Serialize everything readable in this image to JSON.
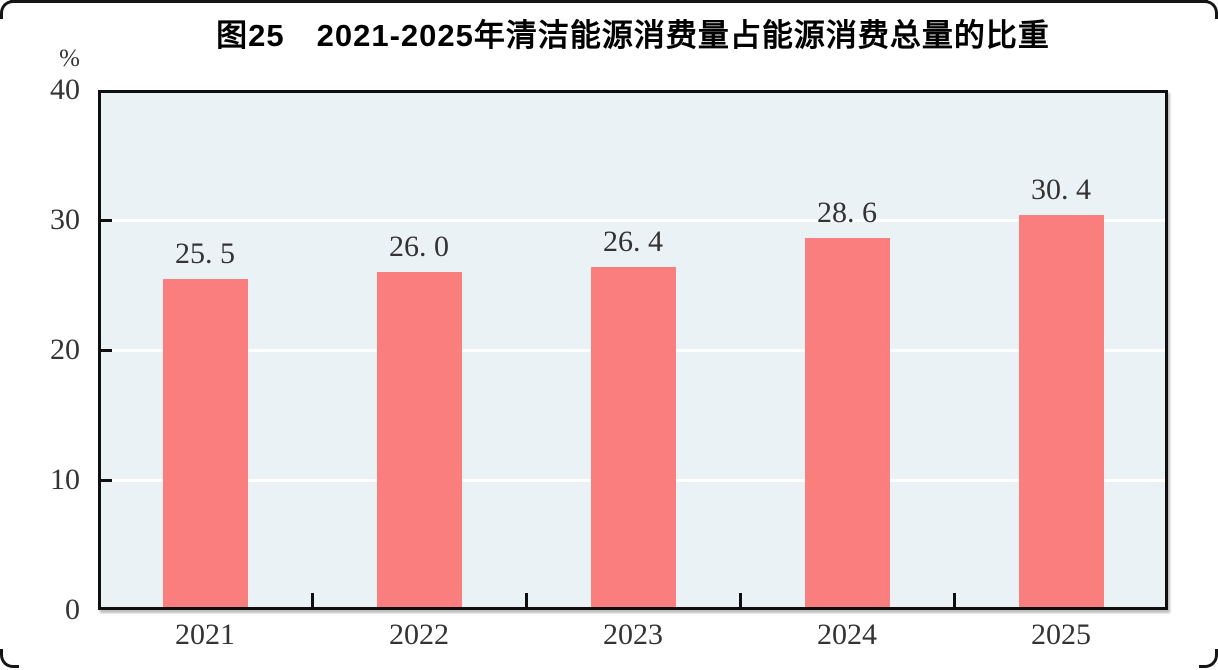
{
  "figure": {
    "title": "图25　2021-2025年清洁能源消费量占能源消费总量的比重",
    "unit_label": "%"
  },
  "chart_data": {
    "type": "bar",
    "title": "图25　2021-2025年清洁能源消费量占能源消费总量的比重",
    "categories": [
      "2021",
      "2022",
      "2023",
      "2024",
      "2025"
    ],
    "values": [
      25.5,
      26.0,
      26.4,
      28.6,
      30.4
    ],
    "value_labels": [
      "25. 5",
      "26. 0",
      "26. 4",
      "28. 6",
      "30. 4"
    ],
    "xlabel": "",
    "ylabel": "%",
    "ylim": [
      0,
      40
    ],
    "yticks": [
      0,
      10,
      20,
      30,
      40
    ],
    "grid": "horizontal",
    "legend": "none",
    "colors": {
      "bar": "#FB7E7E",
      "plot_background": "#EBF2F6",
      "gridline": "#FFFFFF",
      "axis": "#0F0F0F",
      "label_text": "#333333",
      "title_text": "#000000"
    }
  }
}
